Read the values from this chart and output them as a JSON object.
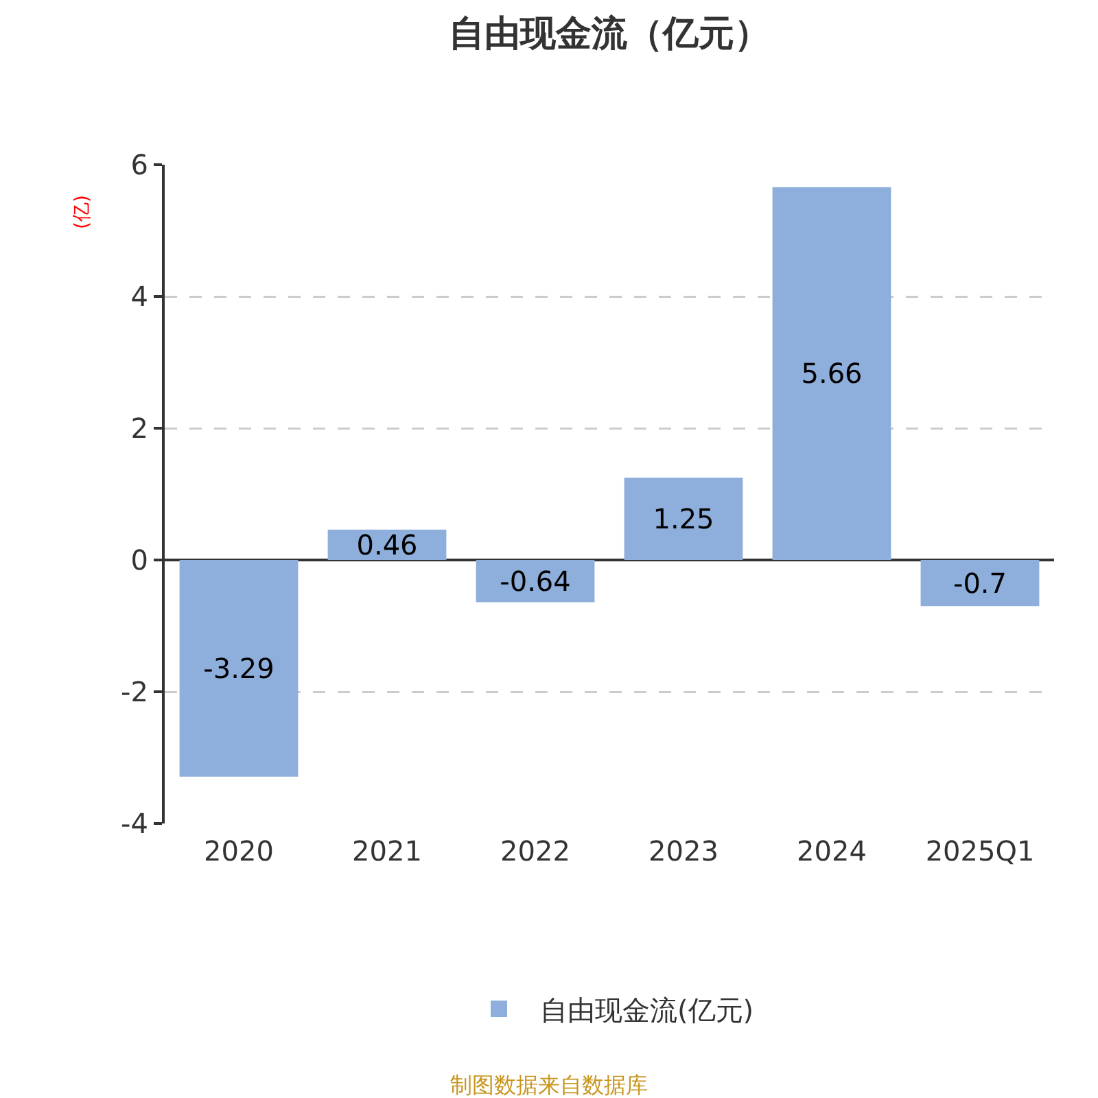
{
  "chart_data": {
    "type": "bar",
    "title": "自由现金流（亿元）",
    "ylabel": "(亿)",
    "categories": [
      "2020",
      "2021",
      "2022",
      "2023",
      "2024",
      "2025Q1"
    ],
    "series": [
      {
        "name": "自由现金流(亿元)",
        "color": "#8eaedb",
        "values": [
          -3.29,
          0.46,
          -0.64,
          1.25,
          5.66,
          -0.7
        ]
      }
    ],
    "ylim": [
      -4,
      6
    ],
    "yticks": [
      -4,
      -2,
      0,
      2,
      4,
      6
    ],
    "grid": "y",
    "legend": "bottom",
    "data_labels": true,
    "annotations": [
      "制图数据来自数据库"
    ]
  }
}
